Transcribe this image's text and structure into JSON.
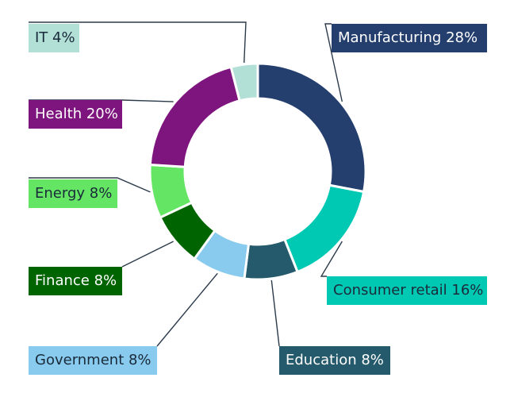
{
  "chart_data": {
    "type": "pie",
    "variant": "donut",
    "title": "",
    "slices": [
      {
        "label": "Manufacturing",
        "value": 28,
        "label_text": "Manufacturing 28%",
        "color": "#243f6e",
        "text_color": "#ffffff"
      },
      {
        "label": "Consumer retail",
        "value": 16,
        "label_text": "Consumer retail 16%",
        "color": "#00c9b3",
        "text_color": "#1a2a3a"
      },
      {
        "label": "Education",
        "value": 8,
        "label_text": "Education 8%",
        "color": "#245a6b",
        "text_color": "#ffffff"
      },
      {
        "label": "Government",
        "value": 8,
        "label_text": "Government 8%",
        "color": "#88cbee",
        "text_color": "#1a2a3a"
      },
      {
        "label": "Finance",
        "value": 8,
        "label_text": "Finance 8%",
        "color": "#006400",
        "text_color": "#ffffff"
      },
      {
        "label": "Energy",
        "value": 8,
        "label_text": "Energy 8%",
        "color": "#64e664",
        "text_color": "#1a2a3a"
      },
      {
        "label": "Health",
        "value": 20,
        "label_text": "Health 20%",
        "color": "#7e147e",
        "text_color": "#ffffff"
      },
      {
        "label": "IT",
        "value": 4,
        "label_text": "IT 4%",
        "color": "#b2dfd6",
        "text_color": "#1a2a3a"
      }
    ],
    "start_angle_deg": 0,
    "direction": "clockwise",
    "legend": "none"
  }
}
